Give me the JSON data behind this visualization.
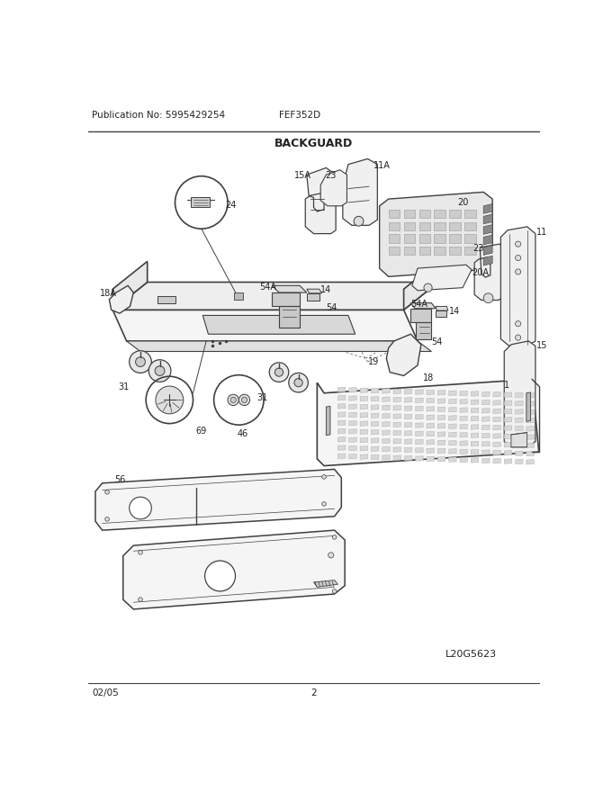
{
  "title": "BACKGUARD",
  "pub_no": "Publication No: 5995429254",
  "model": "FEF352D",
  "date": "02/05",
  "page": "2",
  "diagram_id": "L20G5623",
  "bg_color": "#ffffff",
  "lc": "#404040",
  "tc": "#222222",
  "figsize": [
    6.8,
    8.8
  ],
  "dpi": 100
}
